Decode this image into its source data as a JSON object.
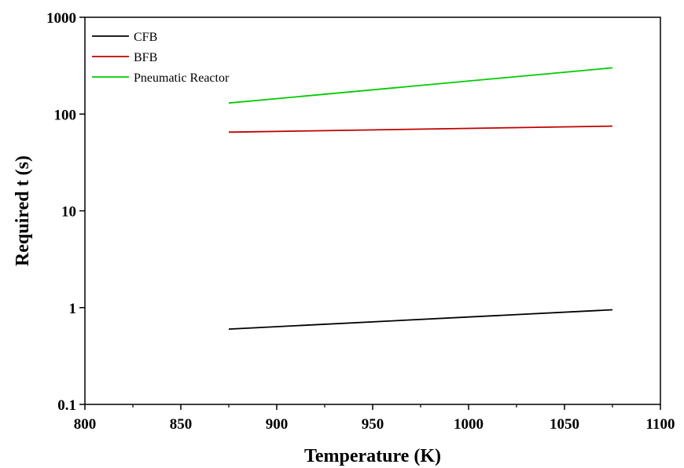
{
  "chart_data": {
    "type": "line",
    "xlabel": "Temperature (K)",
    "ylabel": "Required t (s)",
    "xlim": [
      800,
      1100
    ],
    "ylim": [
      0.1,
      1000
    ],
    "y_scale": "log",
    "x_ticks": [
      800,
      850,
      900,
      950,
      1000,
      1050,
      1100
    ],
    "y_ticks": [
      {
        "value": 0.1,
        "label": "0.1"
      },
      {
        "value": 1,
        "label": "1"
      },
      {
        "value": 10,
        "label": "10"
      },
      {
        "value": 100,
        "label": "100"
      },
      {
        "value": 1000,
        "label": "1000"
      }
    ],
    "grid": false,
    "legend_position": "top-left",
    "series": [
      {
        "name": "CFB",
        "color": "#000000",
        "x": [
          875,
          1075
        ],
        "y": [
          0.6,
          0.95
        ]
      },
      {
        "name": "BFB",
        "color": "#c00000",
        "x": [
          875,
          1075
        ],
        "y": [
          65,
          75
        ]
      },
      {
        "name": "Pneumatic Reactor",
        "color": "#00cc00",
        "x": [
          875,
          1075
        ],
        "y": [
          130,
          300
        ]
      }
    ]
  }
}
